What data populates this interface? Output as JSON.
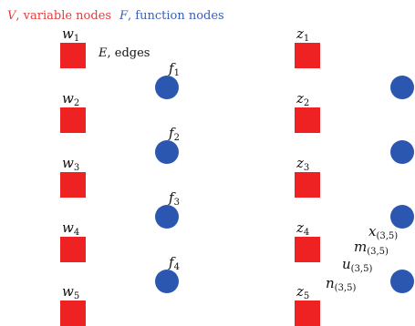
{
  "legend": {
    "variable_symbol": "V",
    "variable_text": ", variable nodes",
    "function_symbol": "F",
    "function_text": ", function nodes",
    "edges_symbol": "E",
    "edges_text": ", edges"
  },
  "colors": {
    "variable_node": "#ee2222",
    "function_node": "#2b57b0",
    "variable_legend": "#e83a3a",
    "function_legend": "#3a5fb8",
    "text": "#111111"
  },
  "groups": [
    {
      "variables": [
        {
          "base": "w",
          "sub": "1"
        },
        {
          "base": "w",
          "sub": "2"
        },
        {
          "base": "w",
          "sub": "3"
        },
        {
          "base": "w",
          "sub": "4"
        },
        {
          "base": "w",
          "sub": "5"
        }
      ],
      "functions": [
        {
          "base": "f",
          "sub": "1"
        },
        {
          "base": "f",
          "sub": "2"
        },
        {
          "base": "f",
          "sub": "3"
        },
        {
          "base": "f",
          "sub": "4"
        }
      ]
    },
    {
      "variables": [
        {
          "base": "z",
          "sub": "1"
        },
        {
          "base": "z",
          "sub": "2"
        },
        {
          "base": "z",
          "sub": "3"
        },
        {
          "base": "z",
          "sub": "4"
        },
        {
          "base": "z",
          "sub": "5"
        }
      ],
      "functions": [
        {
          "base": "",
          "sub": ""
        },
        {
          "base": "",
          "sub": ""
        },
        {
          "base": "",
          "sub": ""
        },
        {
          "base": "",
          "sub": ""
        }
      ]
    }
  ],
  "message_labels": [
    {
      "base": "x",
      "sub": "(3,5)"
    },
    {
      "base": "m",
      "sub": "(3,5)"
    },
    {
      "base": "u",
      "sub": "(3,5)"
    },
    {
      "base": "n",
      "sub": "(3,5)"
    }
  ]
}
